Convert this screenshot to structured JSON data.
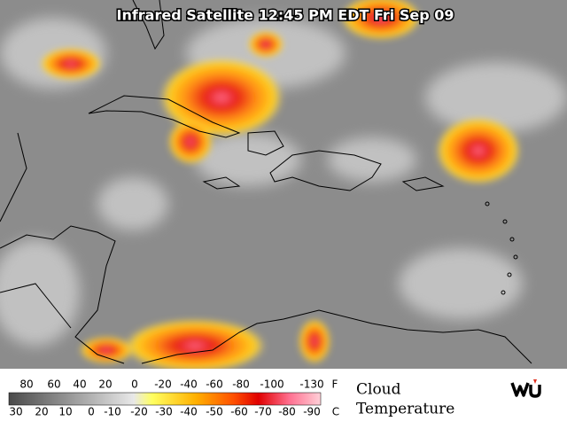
{
  "header": {
    "title": "Infrared Satellite 12:45 PM EDT Fri Sep 09"
  },
  "legend": {
    "fahrenheit_labels": [
      80,
      60,
      40,
      20,
      0,
      -20,
      -40,
      -60,
      -80,
      -100,
      -130
    ],
    "fahrenheit_unit": "F",
    "celsius_labels": [
      30,
      20,
      10,
      0,
      -10,
      -20,
      -30,
      -40,
      -50,
      -60,
      -70,
      -80,
      -90
    ],
    "celsius_unit": "C",
    "caption_line1": "Cloud",
    "caption_line2": "Temperature"
  }
}
